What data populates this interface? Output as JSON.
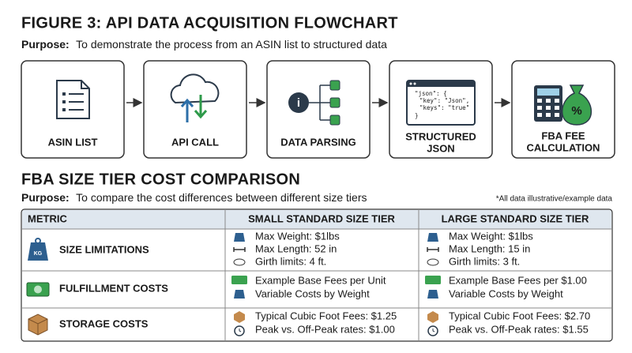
{
  "header": {
    "title": "FIGURE 3: API DATA ACQUISITION FLOWCHART",
    "purpose_label": "Purpose:",
    "purpose_text": "To demonstrate the process from an ASIN list to structured data"
  },
  "flowchart": {
    "steps": [
      {
        "label_lines": [
          "ASIN LIST"
        ]
      },
      {
        "label_lines": [
          "API CALL"
        ]
      },
      {
        "label_lines": [
          "DATA PARSING"
        ]
      },
      {
        "label_lines": [
          "STRUCTURED",
          "JSON"
        ],
        "code": [
          "\"json\": {",
          "\"key\": \"Json\",",
          "\"keys\": \"true\"",
          "}"
        ]
      },
      {
        "label_lines": [
          "FBA FEE",
          "CALCULATION"
        ]
      }
    ]
  },
  "comparison": {
    "title": "FBA SIZE TIER COST COMPARISON",
    "purpose_label": "Purpose:",
    "purpose_text": "To compare the cost differences between different size tiers",
    "note": "*All data illustrative/example data",
    "table": {
      "columns": [
        "METRIC",
        "SMALL STANDARD SIZE TIER",
        "LARGE STANDARD SIZE TIER"
      ],
      "rows": [
        {
          "metric": "SIZE LIMITATIONS",
          "small": [
            "Max Weight: $1lbs",
            "Max Length: 52 in",
            "Girth limits: 4 ft."
          ],
          "large": [
            "Max Weight: $1lbs",
            "Max Length: 15 in",
            "Girth limits: 3 ft."
          ]
        },
        {
          "metric": "FULFILLMENT COSTS",
          "small": [
            "Example Base Fees per Unit",
            "Variable Costs by Weight"
          ],
          "large": [
            "Example Base Fees per $1.00",
            "Variable Costs by Weight"
          ]
        },
        {
          "metric": "STORAGE COSTS",
          "small": [
            "Typical Cubic Foot Fees: $1.25",
            "Peak vs. Off-Peak rates: $1.00"
          ],
          "large": [
            "Typical Cubic Foot Fees: $2.70",
            "Peak vs. Off-Peak rates: $1.55"
          ]
        }
      ]
    }
  }
}
